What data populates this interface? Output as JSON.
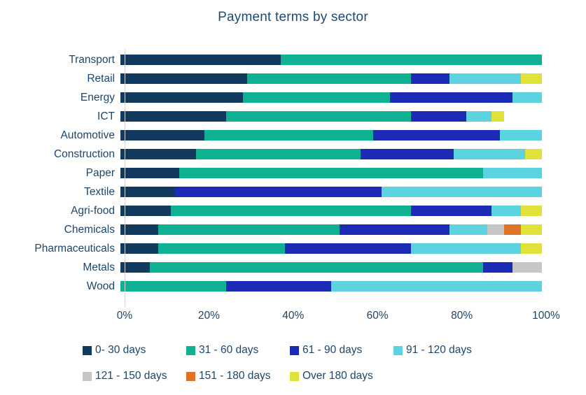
{
  "title": "Payment terms by sector",
  "colors": {
    "background": "#ffffff",
    "title_text": "#1e4a73",
    "label_text": "#1e456b",
    "axis_line": "#d9d9d9"
  },
  "chart_data": {
    "type": "bar",
    "orientation": "horizontal",
    "stacked": true,
    "stack_total": 100,
    "title": "Payment terms by sector",
    "xlabel": "",
    "ylabel": "",
    "xlim": [
      0,
      100
    ],
    "x_ticks": [
      "0%",
      "20%",
      "40%",
      "60%",
      "80%",
      "100%"
    ],
    "grid": false,
    "legend_position": "bottom",
    "categories": [
      "Transport",
      "Retail",
      "Energy",
      "ICT",
      "Automotive",
      "Construction",
      "Paper",
      "Textile",
      "Agri-food",
      "Chemicals",
      "Pharmaceuticals",
      "Metals",
      "Wood"
    ],
    "series": [
      {
        "name": "0- 30 days",
        "color": "#12395e",
        "values": [
          38,
          30,
          29,
          25,
          20,
          18,
          14,
          13,
          12,
          9,
          9,
          7,
          0
        ]
      },
      {
        "name": "31 - 60 days",
        "color": "#10b092",
        "values": [
          62,
          39,
          35,
          44,
          40,
          39,
          72,
          0,
          57,
          43,
          30,
          79,
          25
        ]
      },
      {
        "name": "61 - 90 days",
        "color": "#1c2bb4",
        "values": [
          0,
          9,
          29,
          13,
          30,
          22,
          0,
          49,
          19,
          26,
          30,
          7,
          25
        ]
      },
      {
        "name": "91 - 120 days",
        "color": "#5ed3e0",
        "values": [
          0,
          17,
          7,
          6,
          10,
          17,
          14,
          38,
          7,
          9,
          26,
          0,
          50
        ]
      },
      {
        "name": "121 - 150 days",
        "color": "#c6c6c6",
        "values": [
          0,
          0,
          0,
          0,
          0,
          0,
          0,
          0,
          0,
          4,
          0,
          7,
          0
        ]
      },
      {
        "name": "151 - 180 days",
        "color": "#de7226",
        "values": [
          0,
          0,
          0,
          0,
          0,
          0,
          0,
          0,
          0,
          4,
          0,
          0,
          0
        ]
      },
      {
        "name": "Over 180 days",
        "color": "#e0e23a",
        "values": [
          0,
          5,
          0,
          3,
          0,
          4,
          0,
          0,
          5,
          5,
          5,
          0,
          0
        ]
      }
    ]
  }
}
